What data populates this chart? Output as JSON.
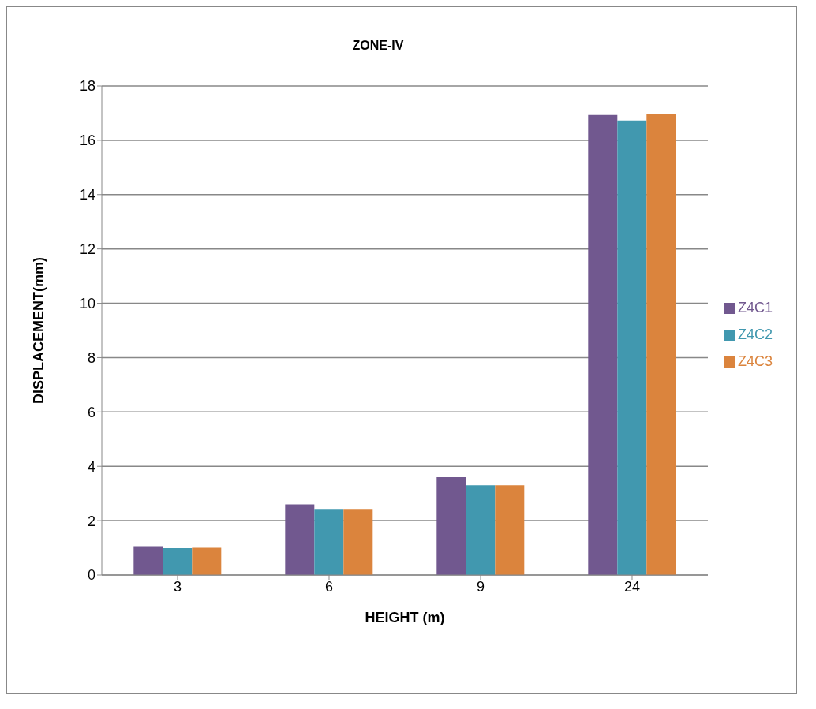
{
  "chart_data": {
    "type": "bar",
    "title": "ZONE-IV",
    "xlabel": "HEIGHT (m)",
    "ylabel": "DISPLACEMENT(mm)",
    "categories": [
      "3",
      "6",
      "9",
      "24"
    ],
    "series": [
      {
        "name": "Z4C1",
        "color": "#71588f",
        "values": [
          1.06,
          2.6,
          3.6,
          16.93
        ]
      },
      {
        "name": "Z4C2",
        "color": "#4198af",
        "values": [
          0.99,
          2.4,
          3.3,
          16.73
        ]
      },
      {
        "name": "Z4C3",
        "color": "#db843d",
        "values": [
          1.0,
          2.4,
          3.3,
          16.97
        ]
      }
    ],
    "ylim": [
      0,
      18
    ],
    "yticks": [
      0,
      2,
      4,
      6,
      8,
      10,
      12,
      14,
      16,
      18
    ],
    "grid": "y",
    "legend": "right"
  }
}
